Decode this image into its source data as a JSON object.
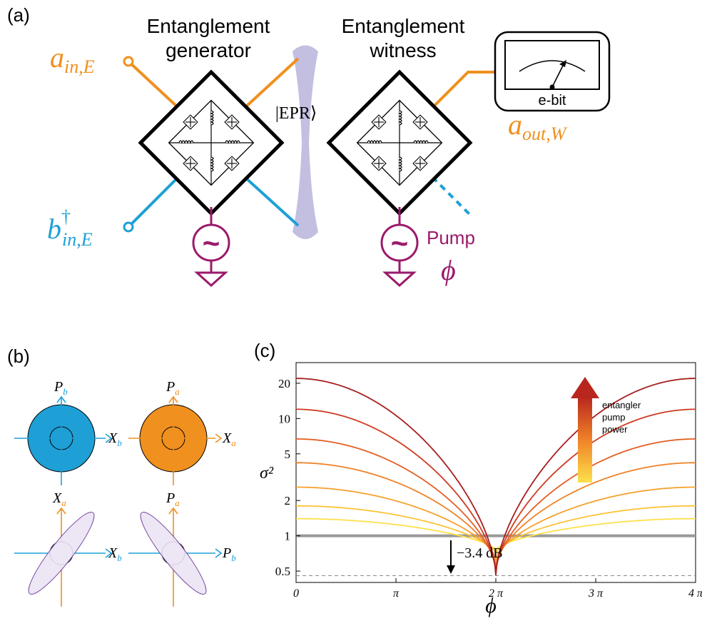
{
  "panel_a": {
    "panel_label": "(a)",
    "generator_title": [
      "Entanglement",
      "generator"
    ],
    "witness_title": [
      "Entanglement",
      "witness"
    ],
    "input_a": {
      "base": "a",
      "sub": "in,E"
    },
    "input_b": {
      "base": "b",
      "sup": "†",
      "sub": "in,E"
    },
    "output_a": {
      "base": "a",
      "sub": "out,W"
    },
    "epr_label": "|EPR⟩",
    "meter_label": "e-bit",
    "pump_label": "Pump",
    "phase_label": "ϕ",
    "source_symbol": "~",
    "colors": {
      "orange": "#f0901e",
      "blue": "#1ea0d6",
      "purple": "#9b1a6b",
      "epr": "#b7b4dc"
    }
  },
  "panel_b": {
    "panel_label": "(b)",
    "top_left": {
      "vertical": {
        "base": "P",
        "sub": "b"
      },
      "horizontal": {
        "base": "X",
        "sub": "b"
      },
      "fill": "#1ea0d6"
    },
    "top_right": {
      "vertical": {
        "base": "P",
        "sub": "a"
      },
      "horizontal": {
        "base": "X",
        "sub": "a"
      },
      "fill": "#f0901e"
    },
    "bottom_left": {
      "vertical": {
        "base": "X",
        "sub": "a"
      },
      "horizontal": {
        "base": "X",
        "sub": "b"
      },
      "fill": "#ece4f4"
    },
    "bottom_right": {
      "vertical": {
        "base": "P",
        "sub": "a"
      },
      "horizontal": {
        "base": "P",
        "sub": "b"
      },
      "fill": "#ece4f4"
    }
  },
  "chart_data": {
    "panel_label": "(c)",
    "type": "line",
    "xlabel": "ϕ",
    "ylabel": "σ²",
    "y_scale": "log",
    "xlim": [
      0,
      12.566
    ],
    "ylim": [
      0.4,
      30
    ],
    "x_ticks": [
      {
        "value": 0,
        "label": "0"
      },
      {
        "value": 3.1416,
        "label": "π"
      },
      {
        "value": 6.2832,
        "label": "2 π"
      },
      {
        "value": 9.4248,
        "label": "3 π"
      },
      {
        "value": 12.566,
        "label": "4 π"
      }
    ],
    "y_ticks": [
      {
        "value": 0.5,
        "label": "0.5"
      },
      {
        "value": 1,
        "label": "1"
      },
      {
        "value": 2,
        "label": "2"
      },
      {
        "value": 5,
        "label": "5"
      },
      {
        "value": 10,
        "label": "10"
      },
      {
        "value": 20,
        "label": "20"
      }
    ],
    "reference_line": {
      "y": 1,
      "color": "#999999"
    },
    "min_dashed_line": {
      "y": 0.457
    },
    "annotation": "−3.4 dB",
    "arrow_text": [
      "entangler",
      "pump",
      "power"
    ],
    "series": [
      {
        "peak": 1.4,
        "min": 0.75,
        "color": "#fde04a"
      },
      {
        "peak": 1.8,
        "min": 0.7,
        "color": "#fbc436"
      },
      {
        "peak": 2.6,
        "min": 0.62,
        "color": "#f6a12e"
      },
      {
        "peak": 4.2,
        "min": 0.55,
        "color": "#f08228"
      },
      {
        "peak": 6.7,
        "min": 0.5,
        "color": "#e35f24"
      },
      {
        "peak": 12,
        "min": 0.47,
        "color": "#cf3a20"
      },
      {
        "peak": 22,
        "min": 0.457,
        "color": "#a81e1e"
      }
    ]
  }
}
